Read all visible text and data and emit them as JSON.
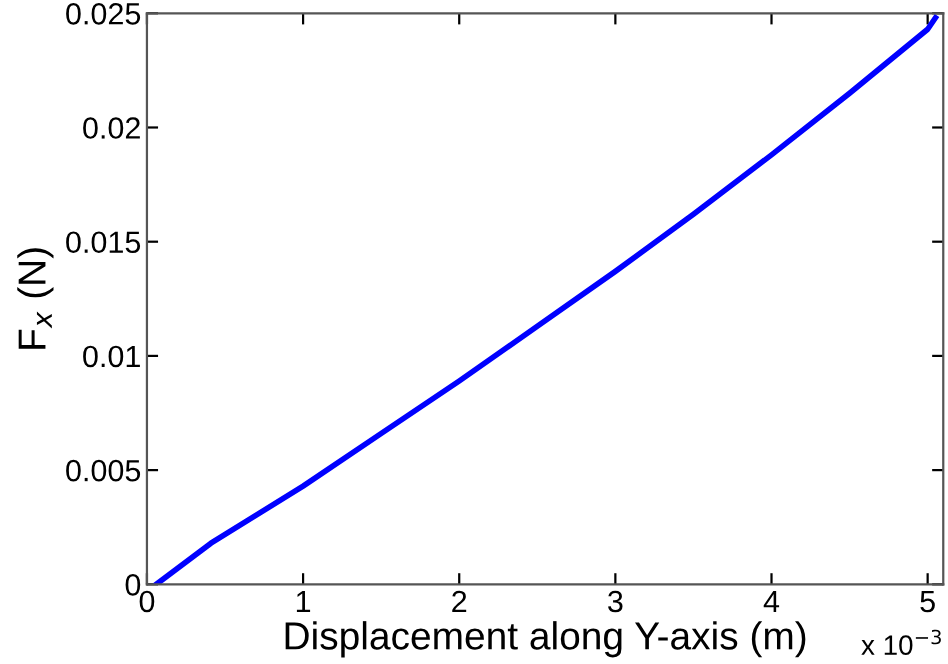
{
  "chart_data": {
    "type": "line",
    "xlabel": "Displacement along Y-axis (m)",
    "ylabel": "F$_{x}$ (N)",
    "x": [
      0.06,
      0.41,
      1,
      1.5,
      2,
      2.5,
      3,
      3.5,
      4,
      4.5,
      5,
      5.05
    ],
    "series": [
      {
        "color": "#0000ff",
        "values": [
          0,
          0.0018,
          0.0043,
          0.0066,
          0.0089,
          0.0113,
          0.0137,
          0.0162,
          0.0188,
          0.0215,
          0.0243,
          0.0248
        ]
      }
    ],
    "xlim": [
      0,
      5.1
    ],
    "xticks": [
      0,
      1,
      2,
      3,
      4,
      5
    ],
    "ylim": [
      0,
      0.025
    ],
    "yticks": [
      0,
      0.005,
      0.01,
      0.015,
      0.02,
      0.025
    ],
    "annotations": [
      "x 10$^{−3}$"
    ],
    "grid": false,
    "legend": false,
    "marker": "none",
    "line_style": "solid"
  }
}
